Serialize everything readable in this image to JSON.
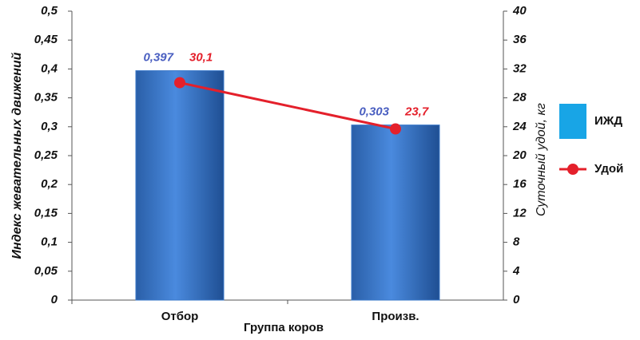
{
  "chart_data": {
    "type": "bar",
    "x_label": "Группа коров",
    "y_label": "Индекс жевательных движений",
    "y2_label": "Суточный удой, кг",
    "categories": [
      "Отбор",
      "Произв."
    ],
    "series": [
      {
        "name": "ИЖД",
        "type": "bar",
        "color": "#3a78c9",
        "values": [
          0.397,
          0.303
        ],
        "value_labels": [
          "0,397",
          "0,303"
        ],
        "label_color": "#4a5fc1"
      },
      {
        "name": "Удой",
        "type": "line",
        "axis": "y2",
        "color": "#e4202b",
        "values": [
          30.1,
          23.7
        ],
        "value_labels": [
          "30,1",
          "23,7"
        ],
        "label_color": "#e4202b"
      }
    ],
    "ylim": [
      0,
      0.5
    ],
    "yticks": [
      0,
      {
        "value": 0.05,
        "label": "0,05"
      },
      {
        "value": 0.1,
        "label": "0,1"
      },
      {
        "value": 0.15,
        "label": "0,15"
      },
      {
        "value": 0.2,
        "label": "0,2"
      },
      {
        "value": 0.25,
        "label": "0,25"
      },
      {
        "value": 0.3,
        "label": "0,3"
      },
      {
        "value": 0.35,
        "label": "0,35"
      },
      {
        "value": 0.4,
        "label": "0,4"
      },
      {
        "value": 0.45,
        "label": "0,45"
      },
      {
        "value": 0.5,
        "label": "0,5"
      }
    ],
    "y2lim": [
      0,
      40
    ],
    "y2ticks": [
      0,
      4,
      8,
      12,
      16,
      20,
      24,
      28,
      32,
      36,
      40
    ],
    "legend": "right"
  }
}
